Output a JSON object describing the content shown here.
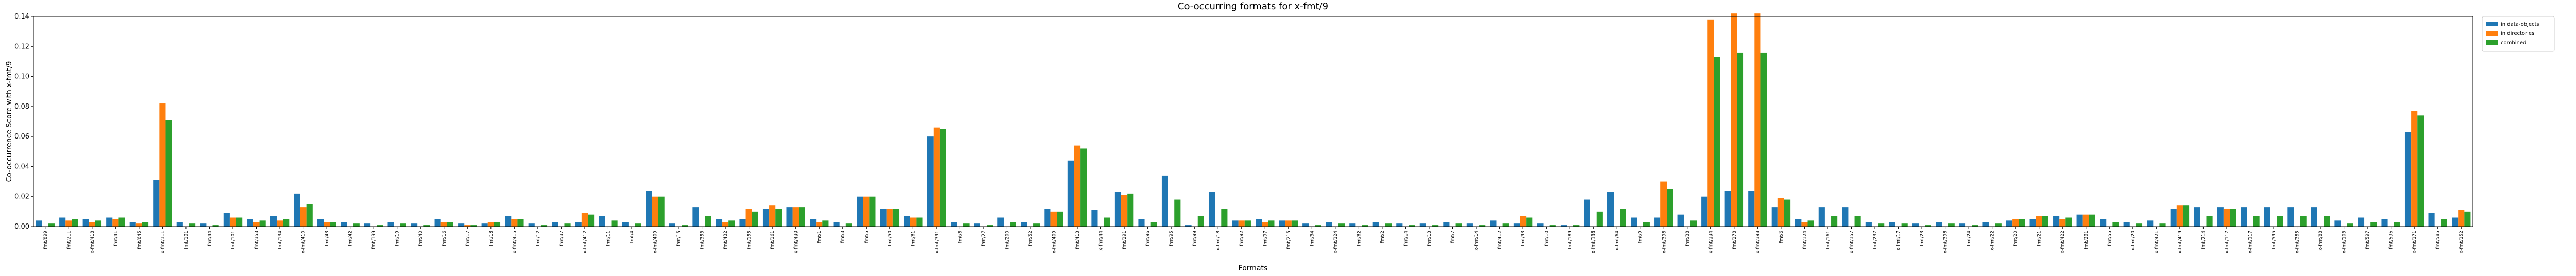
{
  "chart_data": {
    "type": "bar",
    "title": "Co-occurring formats for x-fmt/9",
    "x_label": "Formats",
    "y_label": "Co-occurrence Score with x-fmt/9",
    "categories": [
      "fmt/899",
      "fmt/211",
      "x-fmt/418",
      "fmt/41",
      "fmt/645",
      "x-fmt/111",
      "fmt/101",
      "fmt/44",
      "fmt/101",
      "fmt/353",
      "fmt/134",
      "x-fmt/410",
      "fmt/43",
      "fmt/42",
      "fmt/199",
      "fmt/19",
      "fmt/40",
      "fmt/16",
      "fmt/17",
      "fmt/18",
      "x-fmt/415",
      "fmt/12",
      "fmt/37",
      "x-fmt/412",
      "fmt/11",
      "fmt/4",
      "x-fmt/409",
      "fmt/15",
      "fmt/353",
      "fmt/432",
      "fmt/155",
      "fmt/161",
      "x-fmt/430",
      "fmt/1",
      "fmt/3",
      "fmt/5",
      "fmt/50",
      "fmt/61",
      "x-fmt/391",
      "fmt/8",
      "fmt/27",
      "fmt/200",
      "fmt/52",
      "x-fmt/409",
      "fmt/413",
      "x-fmt/44",
      "fmt/291",
      "fmt/96",
      "fmt/95",
      "fmt/99",
      "x-fmt/18",
      "fmt/92",
      "fmt/97",
      "fmt/215",
      "fmt/34",
      "x-fmt/124",
      "fmt/62",
      "fmt/2",
      "fmt/14",
      "fmt/13",
      "fmt/7",
      "x-fmt/14",
      "fmt/412",
      "fmt/93",
      "fmt/10",
      "fmt/189",
      "x-fmt/136",
      "x-fmt/64",
      "fmt/9",
      "x-fmt/398",
      "fmt/38",
      "x-fmt/134",
      "fmt/278",
      "x-fmt/398",
      "fmt/6",
      "fmt/124",
      "fmt/161",
      "x-fmt/157",
      "fmt/237",
      "x-fmt/17",
      "fmt/23",
      "x-fmt/396",
      "fmt/24",
      "x-fmt/22",
      "fmt/20",
      "fmt/21",
      "x-fmt/422",
      "fmt/201",
      "fmt/55",
      "x-fmt/20",
      "x-fmt/421",
      "x-fmt/419",
      "fmt/214",
      "x-fmt/117",
      "x-fmt/117",
      "fmt/595",
      "x-fmt/385",
      "x-fmt/88",
      "x-fmt/103",
      "fmt/597",
      "fmt/596",
      "x-fmt/171",
      "fmt/585",
      "x-fmt/152"
    ],
    "series": [
      {
        "name": "in data-objects",
        "color": "#1f77b4",
        "values": [
          0.004,
          0.006,
          0.005,
          0.006,
          0.003,
          0.031,
          0.003,
          0.002,
          0.009,
          0.005,
          0.007,
          0.022,
          0.005,
          0.003,
          0.002,
          0.003,
          0.002,
          0.005,
          0.002,
          0.002,
          0.007,
          0.002,
          0.003,
          0.003,
          0.007,
          0.003,
          0.024,
          0.002,
          0.013,
          0.005,
          0.005,
          0.012,
          0.013,
          0.005,
          0.003,
          0.02,
          0.012,
          0.007,
          0.06,
          0.003,
          0.002,
          0.006,
          0.003,
          0.012,
          0.044,
          0.011,
          0.023,
          0.005,
          0.034,
          0.001,
          0.023,
          0.004,
          0.005,
          0.004,
          0.002,
          0.003,
          0.002,
          0.003,
          0.002,
          0.002,
          0.003,
          0.002,
          0.004,
          0.002,
          0.002,
          0.001,
          0.018,
          0.023,
          0.006,
          0.006,
          0.008,
          0.02,
          0.024,
          0.024,
          0.013,
          0.005,
          0.013,
          0.013,
          0.003,
          0.003,
          0.002,
          0.003,
          0.002,
          0.003,
          0.004,
          0.005,
          0.007,
          0.008,
          0.005,
          0.003,
          0.004,
          0.012,
          0.013,
          0.013,
          0.013,
          0.013,
          0.013,
          0.013,
          0.004,
          0.006,
          0.005,
          0.063,
          0.009,
          0.006
        ]
      },
      {
        "name": "in directories",
        "color": "#ff7f0e",
        "values": [
          0,
          0.004,
          0.003,
          0.005,
          0.002,
          0.082,
          0,
          0,
          0.006,
          0.003,
          0.004,
          0.013,
          0.003,
          0,
          0,
          0,
          0,
          0.003,
          0.001,
          0.003,
          0.005,
          0,
          0,
          0.009,
          0,
          0,
          0.02,
          0,
          0,
          0.003,
          0.012,
          0.014,
          0.013,
          0.003,
          0,
          0.02,
          0.012,
          0.006,
          0.066,
          0,
          0,
          0,
          0,
          0.01,
          0.054,
          0,
          0.021,
          0,
          0,
          0,
          0,
          0.004,
          0.003,
          0.004,
          0,
          0,
          0,
          0,
          0,
          0,
          0,
          0,
          0,
          0.007,
          0,
          0,
          0,
          0,
          0,
          0.03,
          0,
          0.138,
          0.142,
          0.142,
          0.019,
          0.003,
          0,
          0,
          0,
          0,
          0,
          0,
          0,
          0,
          0.005,
          0.007,
          0.005,
          0.008,
          0,
          0,
          0,
          0.014,
          0,
          0.012,
          0,
          0,
          0,
          0,
          0,
          0,
          0,
          0.077,
          0,
          0.011
        ]
      },
      {
        "name": "combined",
        "color": "#2ca02c",
        "values": [
          0.002,
          0.005,
          0.004,
          0.006,
          0.003,
          0.071,
          0.002,
          0.001,
          0.006,
          0.004,
          0.005,
          0.015,
          0.003,
          0.002,
          0.001,
          0.002,
          0.001,
          0.003,
          0.001,
          0.003,
          0.005,
          0.001,
          0.002,
          0.008,
          0.004,
          0.002,
          0.02,
          0.001,
          0.007,
          0.004,
          0.01,
          0.012,
          0.013,
          0.004,
          0.002,
          0.02,
          0.012,
          0.006,
          0.065,
          0.002,
          0.001,
          0.003,
          0.002,
          0.01,
          0.052,
          0.006,
          0.022,
          0.003,
          0.018,
          0.007,
          0.012,
          0.004,
          0.004,
          0.004,
          0.001,
          0.002,
          0.001,
          0.002,
          0.001,
          0.001,
          0.002,
          0.001,
          0.002,
          0.006,
          0.001,
          0.001,
          0.01,
          0.012,
          0.003,
          0.025,
          0.004,
          0.113,
          0.116,
          0.116,
          0.018,
          0.004,
          0.007,
          0.007,
          0.002,
          0.002,
          0.001,
          0.002,
          0.001,
          0.002,
          0.005,
          0.007,
          0.006,
          0.008,
          0.003,
          0.002,
          0.002,
          0.014,
          0.007,
          0.012,
          0.007,
          0.007,
          0.007,
          0.007,
          0.002,
          0.003,
          0.003,
          0.074,
          0.005,
          0.01
        ]
      }
    ],
    "ylim": [
      0,
      0.14
    ],
    "yticks": [
      {
        "value": 0,
        "label": "0.00"
      },
      {
        "value": 0.02,
        "label": "0.02"
      },
      {
        "value": 0.04,
        "label": "0.04"
      },
      {
        "value": 0.06,
        "label": "0.06"
      },
      {
        "value": 0.08,
        "label": "0.08"
      },
      {
        "value": 0.1,
        "label": "0.10"
      },
      {
        "value": 0.12,
        "label": "0.12"
      },
      {
        "value": 0.14,
        "label": "0.14"
      }
    ],
    "legend": "upper right outside"
  }
}
